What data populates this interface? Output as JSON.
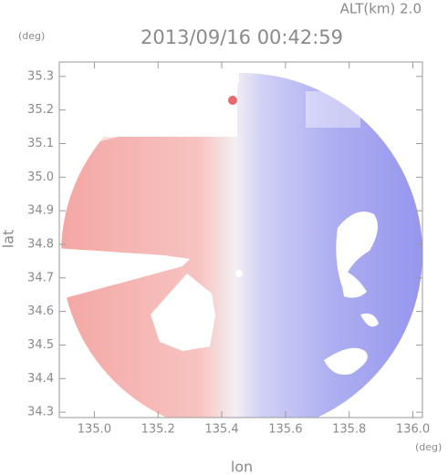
{
  "chart_data": {
    "type": "image",
    "title": "2013/09/16 00:42:59",
    "subtitle": "ALT(km) 2.0",
    "y_unit": "(deg)",
    "x_unit": "(deg)",
    "x_label": "lon",
    "y_label": "lat",
    "xlim": [
      134.89,
      136.03
    ],
    "ylim": [
      34.284,
      35.343
    ],
    "xticks": [
      {
        "value": 135,
        "label": "135.0"
      },
      135.2,
      135.4,
      135.6,
      135.8,
      {
        "value": 136,
        "label": "136.0"
      }
    ],
    "yticks": [
      34.3,
      34.4,
      34.5,
      34.6,
      34.7,
      34.8,
      34.9,
      {
        "value": 35,
        "label": "35.0"
      },
      35.1,
      35.2,
      35.3
    ]
  }
}
